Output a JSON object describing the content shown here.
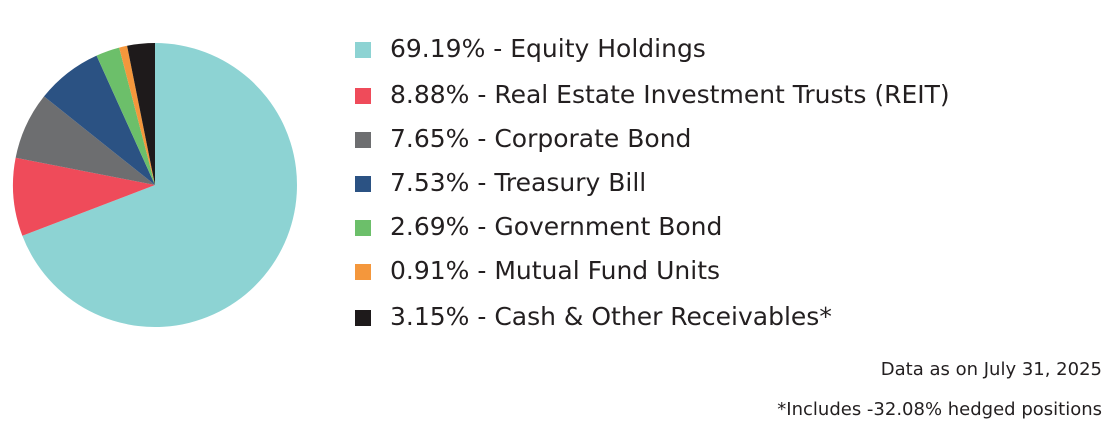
{
  "chart_data": {
    "type": "pie",
    "categories": [
      "69.19% - Equity Holdings",
      "8.88% - Real Estate Investment Trusts (REIT)",
      "7.65% - Corporate Bond",
      "7.53% - Treasury Bill",
      "2.69% - Government Bond",
      "0.91% - Mutual Fund Units",
      "3.15% - Cash & Other Receivables*"
    ],
    "values": [
      69.19,
      8.88,
      7.65,
      7.53,
      2.69,
      0.91,
      3.15
    ],
    "colors": [
      "#8dd3d3",
      "#ef4b5a",
      "#6d6e70",
      "#2b5283",
      "#6cbf6a",
      "#f4973c",
      "#1e1a1b"
    ],
    "notes": [
      "Data as on July 31, 2025",
      "*Includes -32.08% hedged positions"
    ]
  }
}
